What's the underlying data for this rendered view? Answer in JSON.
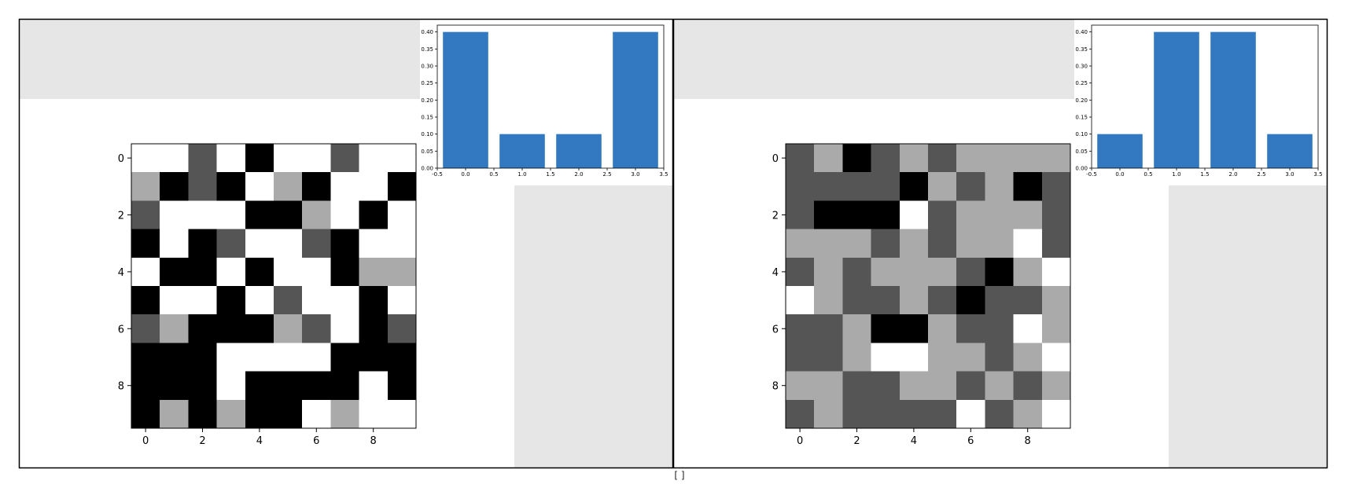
{
  "colors": {
    "level_0": "#000000",
    "level_1": "#555555",
    "level_2": "#aaaaaa",
    "level_3": "#ffffff",
    "bar": "#3379c2",
    "panel_gray": "#e6e6e6",
    "frame": "#000000"
  },
  "footer_mark": "[ ]",
  "chart_data": [
    {
      "type": "heatmap",
      "title": "",
      "xlabel": "",
      "ylabel": "",
      "colormap": "gray",
      "x_ticks": [
        0,
        2,
        4,
        6,
        8
      ],
      "y_ticks": [
        0,
        2,
        4,
        6,
        8
      ],
      "grid": false,
      "z": [
        [
          3,
          3,
          1,
          3,
          0,
          3,
          3,
          1,
          3,
          3
        ],
        [
          2,
          0,
          1,
          0,
          3,
          2,
          0,
          3,
          3,
          0
        ],
        [
          1,
          3,
          3,
          3,
          0,
          0,
          2,
          3,
          0,
          3
        ],
        [
          0,
          3,
          0,
          1,
          3,
          3,
          1,
          0,
          3,
          3
        ],
        [
          3,
          0,
          0,
          3,
          0,
          3,
          3,
          0,
          2,
          2
        ],
        [
          0,
          3,
          3,
          0,
          3,
          1,
          3,
          3,
          0,
          3
        ],
        [
          1,
          2,
          0,
          0,
          0,
          2,
          1,
          3,
          0,
          1
        ],
        [
          0,
          0,
          0,
          3,
          3,
          3,
          3,
          0,
          0,
          0
        ],
        [
          0,
          0,
          0,
          3,
          0,
          0,
          0,
          0,
          3,
          0
        ],
        [
          0,
          2,
          0,
          2,
          0,
          0,
          3,
          2,
          3,
          3
        ]
      ]
    },
    {
      "type": "bar",
      "title": "",
      "xlabel": "",
      "ylabel": "",
      "categories": [
        0,
        1,
        2,
        3
      ],
      "values": [
        0.4,
        0.1,
        0.1,
        0.4
      ],
      "xlim": [
        -0.5,
        3.5
      ],
      "ylim": [
        0,
        0.42
      ],
      "x_ticks": [
        "-0.5",
        "0.0",
        "0.5",
        "1.0",
        "1.5",
        "2.0",
        "2.5",
        "3.0",
        "3.5"
      ],
      "y_ticks": [
        "0.00",
        "0.05",
        "0.10",
        "0.15",
        "0.20",
        "0.25",
        "0.30",
        "0.35",
        "0.40"
      ],
      "grid": false
    },
    {
      "type": "heatmap",
      "title": "",
      "xlabel": "",
      "ylabel": "",
      "colormap": "gray",
      "x_ticks": [
        0,
        2,
        4,
        6,
        8
      ],
      "y_ticks": [
        0,
        2,
        4,
        6,
        8
      ],
      "grid": false,
      "z": [
        [
          1,
          2,
          0,
          1,
          2,
          1,
          2,
          2,
          2,
          2
        ],
        [
          1,
          1,
          1,
          1,
          0,
          2,
          1,
          2,
          0,
          1
        ],
        [
          1,
          0,
          0,
          0,
          3,
          1,
          2,
          2,
          2,
          1
        ],
        [
          2,
          2,
          2,
          1,
          2,
          1,
          2,
          2,
          3,
          1
        ],
        [
          1,
          2,
          1,
          2,
          2,
          2,
          1,
          0,
          2,
          3
        ],
        [
          3,
          2,
          1,
          1,
          2,
          1,
          0,
          1,
          1,
          2
        ],
        [
          1,
          1,
          2,
          0,
          0,
          2,
          1,
          1,
          3,
          2
        ],
        [
          1,
          1,
          2,
          3,
          3,
          2,
          2,
          1,
          2,
          3
        ],
        [
          2,
          2,
          1,
          1,
          2,
          2,
          1,
          2,
          1,
          2
        ],
        [
          1,
          2,
          1,
          1,
          1,
          1,
          3,
          1,
          2,
          3
        ]
      ]
    },
    {
      "type": "bar",
      "title": "",
      "xlabel": "",
      "ylabel": "",
      "categories": [
        0,
        1,
        2,
        3
      ],
      "values": [
        0.1,
        0.4,
        0.4,
        0.1
      ],
      "xlim": [
        -0.5,
        3.5
      ],
      "ylim": [
        0,
        0.42
      ],
      "x_ticks": [
        "-0.5",
        "0.0",
        "0.5",
        "1.0",
        "1.5",
        "2.0",
        "2.5",
        "3.0",
        "3.5"
      ],
      "y_ticks": [
        "0.00",
        "0.05",
        "0.10",
        "0.15",
        "0.20",
        "0.25",
        "0.30",
        "0.35",
        "0.40"
      ],
      "grid": false
    }
  ]
}
